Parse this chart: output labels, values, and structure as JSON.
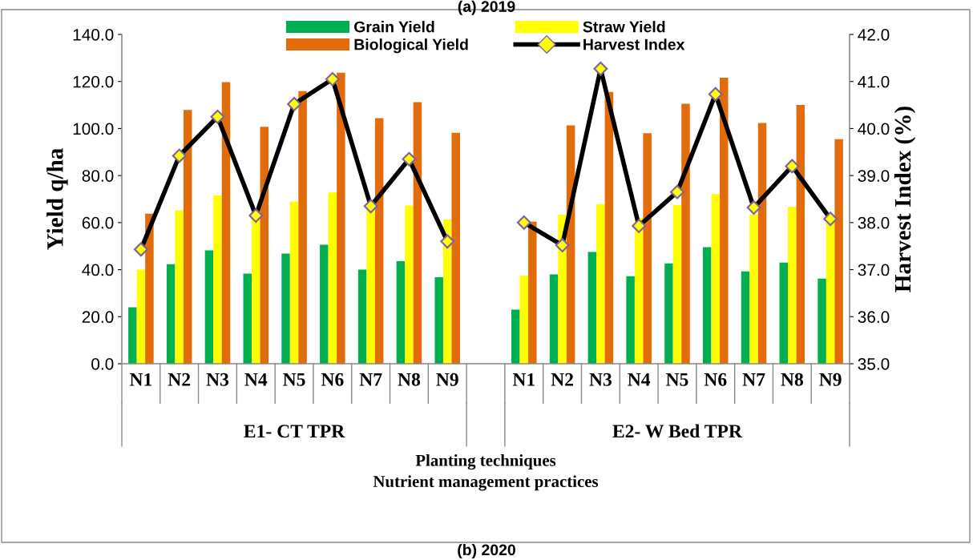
{
  "chart_data": {
    "type": "bar",
    "title": "(a) 2019",
    "categories": [
      "N1",
      "N2",
      "N3",
      "N4",
      "N5",
      "N6",
      "N7",
      "N8",
      "N9",
      null,
      "N1",
      "N2",
      "N3",
      "N4",
      "N5",
      "N6",
      "N7",
      "N8",
      "N9"
    ],
    "series": [
      {
        "name": "Grain Yield",
        "color": "#00b050",
        "values": [
          24.0,
          42.3,
          48.2,
          38.3,
          46.8,
          50.6,
          40.0,
          43.6,
          36.8,
          null,
          23.0,
          38.0,
          47.5,
          37.2,
          42.7,
          49.6,
          39.3,
          43.0,
          36.2
        ]
      },
      {
        "name": "Straw Yield",
        "color": "#ffff00",
        "values": [
          40.0,
          65.2,
          71.5,
          65.0,
          69.0,
          72.8,
          65.0,
          67.3,
          61.3,
          null,
          37.5,
          63.4,
          67.8,
          62.0,
          67.5,
          72.1,
          63.5,
          66.8,
          61.0
        ]
      },
      {
        "name": "Biological Yield",
        "color": "#e36c0a",
        "values": [
          63.8,
          107.9,
          119.7,
          100.7,
          115.9,
          123.7,
          104.4,
          111.2,
          98.2,
          null,
          60.4,
          101.3,
          115.6,
          98.0,
          110.5,
          121.6,
          102.4,
          110.0,
          95.5
        ]
      },
      {
        "name": "Harvest Index",
        "type": "line",
        "axis": "y2",
        "color": "#000000",
        "marker": "diamond",
        "values": [
          37.43,
          39.42,
          40.25,
          38.15,
          40.52,
          41.05,
          38.35,
          39.35,
          37.6,
          null,
          38.0,
          37.52,
          41.27,
          37.93,
          38.65,
          40.73,
          38.32,
          39.2,
          38.08
        ]
      }
    ],
    "ylabel": "Yield q/ha",
    "y2label": "Harvest Index (%)",
    "xlabel": "Planting techniques\nNutrient management practices",
    "ylim": [
      0,
      140
    ],
    "yticks": [
      {
        "value": 0,
        "label": "0.0"
      },
      {
        "value": 20,
        "label": "20.0"
      },
      {
        "value": 40,
        "label": "40.0"
      },
      {
        "value": 60,
        "label": "60.0"
      },
      {
        "value": 80,
        "label": "80.0"
      },
      {
        "value": 100,
        "label": "100.0"
      },
      {
        "value": 120,
        "label": "120.0"
      },
      {
        "value": 140,
        "label": "140.0"
      }
    ],
    "y2lim": [
      35,
      42
    ],
    "y2ticks": [
      {
        "value": 35,
        "label": "35.0"
      },
      {
        "value": 36,
        "label": "36.0"
      },
      {
        "value": 37,
        "label": "37.0"
      },
      {
        "value": 38,
        "label": "38.0"
      },
      {
        "value": 39,
        "label": "39.0"
      },
      {
        "value": 40,
        "label": "40.0"
      },
      {
        "value": 41,
        "label": "41.0"
      },
      {
        "value": 42,
        "label": "42.0"
      }
    ],
    "annotations": [
      "E1- CT TPR",
      "E2- W Bed TPR",
      "(b) 2020"
    ],
    "legend": "top",
    "grid": false
  }
}
